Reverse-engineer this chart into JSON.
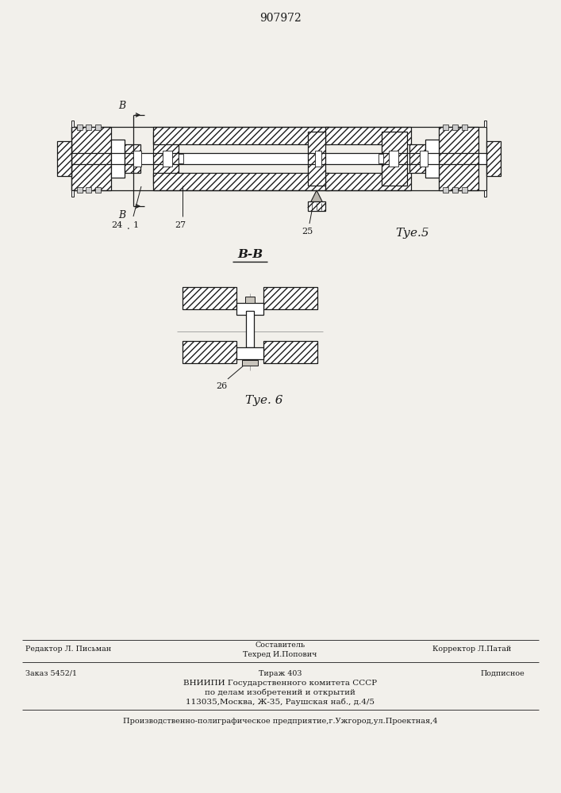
{
  "patent_number": "907972",
  "bg_color": "#f2f0eb",
  "fig5_label": "Τуе.5",
  "fig6_label": "Τуе. 6",
  "section_label": "В-В",
  "label_B": "B",
  "label_24": "24",
  "label_1": "1",
  "label_27": "27",
  "label_25": "25",
  "label_26": "26",
  "footer": {
    "editor": "Редактор Л. Письман",
    "composer": "Составитель",
    "techred": "Техред И.Попович",
    "corrector": "Корректор Л.Патай",
    "order": "Заказ 5452/1",
    "tirazh": "Тираж 403",
    "podpisnoe": "Подписное",
    "vniip1": "ВНИИПИ Государственного комитета СССР",
    "vniip2": "по делам изобретений и открытий",
    "vniip3": "113035,Москва, Ж-35, Раушская наб., д.4/5",
    "production": "Производственно-полиграфическое предприятие,г.Ужгород,ул.Проектная,4"
  },
  "lc": "#1a1a1a"
}
